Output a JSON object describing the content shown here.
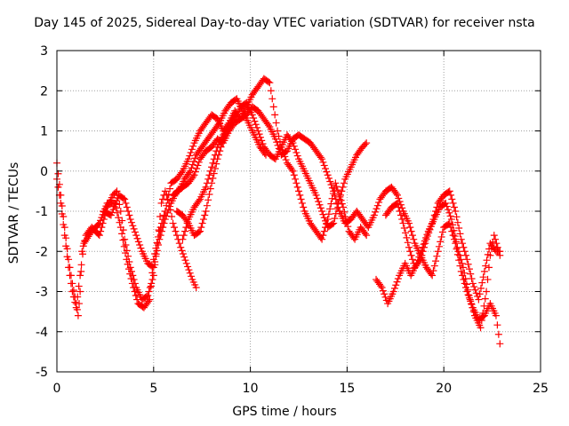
{
  "chart_data": {
    "type": "scatter",
    "title": "Day 145 of 2025, Sidereal Day-to-day VTEC variation (SDTVAR) for receiver nsta",
    "xlabel": "GPS time / hours",
    "ylabel": "SDTVAR / TECUs",
    "xlim": [
      0,
      25
    ],
    "ylim": [
      -5,
      3
    ],
    "xticks": [
      "0",
      "5",
      "10",
      "15",
      "20",
      "25"
    ],
    "yticks": [
      "3",
      "2",
      "1",
      "0",
      "-1",
      "-2",
      "-3",
      "-4",
      "-5"
    ],
    "grid": true,
    "marker": "+",
    "color": "#ff0000",
    "series": [
      {
        "name": "trace-1",
        "points": [
          [
            0,
            0.2
          ],
          [
            0.2,
            -0.6
          ],
          [
            0.4,
            -1.4
          ],
          [
            0.6,
            -2.2
          ],
          [
            0.8,
            -2.8
          ],
          [
            1.0,
            -3.3
          ],
          [
            1.1,
            -3.6
          ],
          [
            1.2,
            -3.0
          ],
          [
            1.3,
            -2.0
          ],
          [
            1.5,
            -1.6
          ],
          [
            1.8,
            -1.4
          ],
          [
            2.2,
            -1.6
          ],
          [
            2.6,
            -0.9
          ],
          [
            2.9,
            -0.6
          ],
          [
            3.1,
            -0.5
          ],
          [
            3.3,
            -1.0
          ],
          [
            3.5,
            -1.7
          ],
          [
            3.8,
            -2.4
          ],
          [
            4.1,
            -2.9
          ],
          [
            4.4,
            -3.2
          ],
          [
            4.7,
            -3.1
          ],
          [
            5.0,
            -2.6
          ],
          [
            5.2,
            -1.8
          ],
          [
            5.4,
            -0.8
          ],
          [
            5.6,
            -0.5
          ],
          [
            5.8,
            -0.8
          ],
          [
            6.0,
            -1.3
          ],
          [
            6.2,
            -1.6
          ],
          [
            6.4,
            -1.9
          ],
          [
            6.7,
            -2.3
          ],
          [
            7.0,
            -2.7
          ],
          [
            7.2,
            -2.9
          ]
        ]
      },
      {
        "name": "trace-2",
        "points": [
          [
            0,
            -0.2
          ],
          [
            0.2,
            -0.8
          ],
          [
            0.4,
            -1.6
          ],
          [
            0.6,
            -2.4
          ],
          [
            0.8,
            -3.0
          ],
          [
            1.0,
            -3.4
          ],
          [
            1.2,
            -2.6
          ],
          [
            1.4,
            -1.8
          ],
          [
            1.8,
            -1.5
          ],
          [
            2.2,
            -1.3
          ],
          [
            2.6,
            -0.8
          ],
          [
            3.0,
            -0.8
          ],
          [
            3.3,
            -1.4
          ],
          [
            3.6,
            -2.2
          ],
          [
            3.9,
            -2.8
          ],
          [
            4.2,
            -3.3
          ],
          [
            4.5,
            -3.4
          ],
          [
            4.8,
            -3.2
          ],
          [
            5.0,
            -2.2
          ],
          [
            5.3,
            -1.5
          ],
          [
            5.6,
            -1.0
          ],
          [
            5.9,
            -0.3
          ],
          [
            6.2,
            -0.2
          ],
          [
            6.5,
            0.0
          ],
          [
            6.8,
            0.3
          ],
          [
            7.1,
            0.7
          ],
          [
            7.4,
            1.0
          ],
          [
            7.7,
            1.2
          ],
          [
            8.0,
            1.4
          ],
          [
            8.3,
            1.3
          ],
          [
            8.6,
            1.0
          ],
          [
            8.9,
            1.2
          ],
          [
            9.2,
            1.5
          ],
          [
            9.5,
            1.3
          ],
          [
            9.8,
            1.6
          ],
          [
            10.1,
            1.9
          ],
          [
            10.4,
            2.1
          ],
          [
            10.7,
            2.3
          ],
          [
            11.0,
            2.2
          ],
          [
            11.2,
            1.6
          ],
          [
            11.4,
            1.0
          ],
          [
            11.6,
            0.6
          ],
          [
            11.9,
            0.2
          ],
          [
            12.2,
            0.0
          ],
          [
            12.5,
            -0.5
          ],
          [
            12.8,
            -1.0
          ],
          [
            13.1,
            -1.3
          ],
          [
            13.4,
            -1.5
          ],
          [
            13.7,
            -1.7
          ],
          [
            14.0,
            -1.2
          ],
          [
            14.4,
            -0.3
          ],
          [
            14.8,
            -0.9
          ],
          [
            15.1,
            -1.5
          ],
          [
            15.4,
            -1.7
          ],
          [
            15.7,
            -1.4
          ],
          [
            16.0,
            -1.6
          ]
        ]
      },
      {
        "name": "trace-3",
        "points": [
          [
            2.4,
            -1.0
          ],
          [
            2.8,
            -1.1
          ],
          [
            3.2,
            -0.6
          ],
          [
            3.5,
            -0.7
          ],
          [
            3.8,
            -1.2
          ],
          [
            4.1,
            -1.6
          ],
          [
            4.4,
            -2.0
          ],
          [
            4.7,
            -2.3
          ],
          [
            5.0,
            -2.4
          ],
          [
            5.3,
            -1.7
          ],
          [
            5.6,
            -1.2
          ],
          [
            5.9,
            -0.8
          ],
          [
            6.2,
            -0.5
          ],
          [
            6.5,
            -0.4
          ],
          [
            6.8,
            -0.3
          ],
          [
            7.1,
            -0.1
          ],
          [
            7.4,
            0.3
          ],
          [
            7.7,
            0.5
          ],
          [
            8.0,
            0.6
          ],
          [
            8.3,
            0.8
          ],
          [
            8.6,
            0.7
          ],
          [
            8.9,
            1.0
          ],
          [
            9.2,
            1.2
          ],
          [
            9.5,
            1.3
          ],
          [
            9.8,
            1.4
          ],
          [
            10.1,
            1.6
          ],
          [
            10.4,
            1.5
          ],
          [
            10.7,
            1.3
          ],
          [
            11.0,
            1.1
          ],
          [
            11.3,
            0.8
          ],
          [
            11.6,
            0.4
          ],
          [
            11.9,
            0.5
          ],
          [
            12.2,
            0.8
          ],
          [
            12.5,
            0.9
          ],
          [
            12.8,
            0.8
          ],
          [
            13.1,
            0.7
          ],
          [
            13.4,
            0.5
          ],
          [
            13.7,
            0.3
          ],
          [
            14.0,
            -0.1
          ],
          [
            14.3,
            -0.5
          ],
          [
            14.6,
            -1.0
          ],
          [
            14.9,
            -1.3
          ],
          [
            15.2,
            -1.2
          ],
          [
            15.5,
            -1.0
          ],
          [
            15.8,
            -1.2
          ],
          [
            16.1,
            -1.4
          ],
          [
            16.4,
            -1.1
          ],
          [
            16.7,
            -0.7
          ],
          [
            17.0,
            -0.5
          ],
          [
            17.3,
            -0.4
          ],
          [
            17.6,
            -0.6
          ],
          [
            17.9,
            -1.0
          ],
          [
            18.2,
            -1.3
          ],
          [
            18.5,
            -1.8
          ],
          [
            18.8,
            -2.1
          ],
          [
            19.1,
            -2.4
          ],
          [
            19.4,
            -2.6
          ],
          [
            19.7,
            -2.0
          ],
          [
            20.0,
            -1.4
          ],
          [
            20.3,
            -1.3
          ],
          [
            20.6,
            -1.8
          ],
          [
            20.9,
            -2.5
          ],
          [
            21.2,
            -3.0
          ],
          [
            21.5,
            -3.4
          ],
          [
            21.8,
            -3.7
          ],
          [
            22.1,
            -3.6
          ],
          [
            22.4,
            -3.3
          ],
          [
            22.7,
            -3.6
          ],
          [
            22.9,
            -4.3
          ]
        ]
      },
      {
        "name": "trace-4",
        "points": [
          [
            6.5,
            -1.7
          ],
          [
            6.8,
            -1.2
          ],
          [
            7.1,
            -0.9
          ],
          [
            7.4,
            -0.7
          ],
          [
            7.7,
            -0.4
          ],
          [
            8.0,
            0.1
          ],
          [
            8.3,
            0.6
          ],
          [
            8.6,
            0.9
          ],
          [
            8.9,
            1.1
          ],
          [
            9.2,
            1.3
          ],
          [
            9.5,
            1.6
          ],
          [
            9.8,
            1.7
          ],
          [
            10.1,
            1.4
          ],
          [
            10.4,
            1.0
          ],
          [
            10.7,
            0.6
          ],
          [
            11.0,
            0.4
          ],
          [
            11.3,
            0.3
          ],
          [
            11.6,
            0.6
          ],
          [
            11.9,
            0.9
          ],
          [
            12.2,
            0.7
          ],
          [
            12.5,
            0.3
          ],
          [
            12.8,
            0.0
          ],
          [
            13.1,
            -0.3
          ],
          [
            13.4,
            -0.6
          ],
          [
            13.7,
            -1.0
          ],
          [
            14.0,
            -1.4
          ],
          [
            14.3,
            -1.3
          ],
          [
            14.6,
            -0.7
          ],
          [
            14.9,
            -0.2
          ],
          [
            15.2,
            0.1
          ],
          [
            15.5,
            0.4
          ],
          [
            15.8,
            0.6
          ],
          [
            16.0,
            0.7
          ]
        ]
      },
      {
        "name": "trace-5",
        "points": [
          [
            6.0,
            -0.6
          ],
          [
            6.3,
            -0.5
          ],
          [
            6.6,
            -0.2
          ],
          [
            6.9,
            0.0
          ],
          [
            7.2,
            0.4
          ],
          [
            7.5,
            0.6
          ],
          [
            7.8,
            0.8
          ],
          [
            8.1,
            1.0
          ],
          [
            8.4,
            1.2
          ],
          [
            8.7,
            1.5
          ],
          [
            9.0,
            1.7
          ],
          [
            9.3,
            1.8
          ],
          [
            9.6,
            1.5
          ],
          [
            9.9,
            1.2
          ],
          [
            10.2,
            0.9
          ],
          [
            10.5,
            0.6
          ],
          [
            10.8,
            0.4
          ]
        ]
      },
      {
        "name": "trace-6",
        "points": [
          [
            6.2,
            -1.0
          ],
          [
            6.5,
            -1.1
          ],
          [
            6.8,
            -1.3
          ],
          [
            7.1,
            -1.6
          ],
          [
            7.4,
            -1.5
          ],
          [
            7.7,
            -1.0
          ],
          [
            8.0,
            -0.3
          ],
          [
            8.3,
            0.3
          ],
          [
            8.6,
            0.8
          ],
          [
            8.9,
            1.1
          ],
          [
            9.2,
            1.4
          ]
        ]
      },
      {
        "name": "trace-7",
        "points": [
          [
            16.5,
            -2.7
          ],
          [
            16.8,
            -2.9
          ],
          [
            17.1,
            -3.3
          ],
          [
            17.4,
            -3.0
          ],
          [
            17.7,
            -2.6
          ],
          [
            18.0,
            -2.3
          ],
          [
            18.3,
            -2.6
          ],
          [
            18.6,
            -2.3
          ],
          [
            18.9,
            -1.9
          ],
          [
            19.2,
            -1.5
          ],
          [
            19.5,
            -1.2
          ],
          [
            19.8,
            -0.9
          ],
          [
            20.1,
            -0.8
          ],
          [
            20.4,
            -1.2
          ],
          [
            20.7,
            -1.9
          ],
          [
            21.0,
            -2.4
          ],
          [
            21.3,
            -3.1
          ],
          [
            21.6,
            -3.6
          ],
          [
            21.9,
            -3.9
          ],
          [
            22.2,
            -3.0
          ],
          [
            22.4,
            -2.1
          ],
          [
            22.6,
            -1.6
          ],
          [
            22.9,
            -2.1
          ]
        ]
      },
      {
        "name": "trace-8",
        "points": [
          [
            17.0,
            -1.1
          ],
          [
            17.3,
            -0.9
          ],
          [
            17.6,
            -0.8
          ],
          [
            17.9,
            -1.3
          ],
          [
            18.2,
            -1.9
          ],
          [
            18.5,
            -2.4
          ],
          [
            18.8,
            -2.2
          ],
          [
            19.1,
            -1.7
          ],
          [
            19.4,
            -1.3
          ],
          [
            19.7,
            -0.8
          ],
          [
            20.0,
            -0.6
          ],
          [
            20.3,
            -0.5
          ],
          [
            20.6,
            -1.0
          ],
          [
            20.9,
            -1.7
          ],
          [
            21.2,
            -2.2
          ],
          [
            21.5,
            -2.8
          ],
          [
            21.8,
            -3.2
          ],
          [
            22.1,
            -2.5
          ],
          [
            22.4,
            -1.8
          ],
          [
            22.7,
            -2.0
          ],
          [
            22.9,
            -2.0
          ]
        ]
      }
    ]
  }
}
